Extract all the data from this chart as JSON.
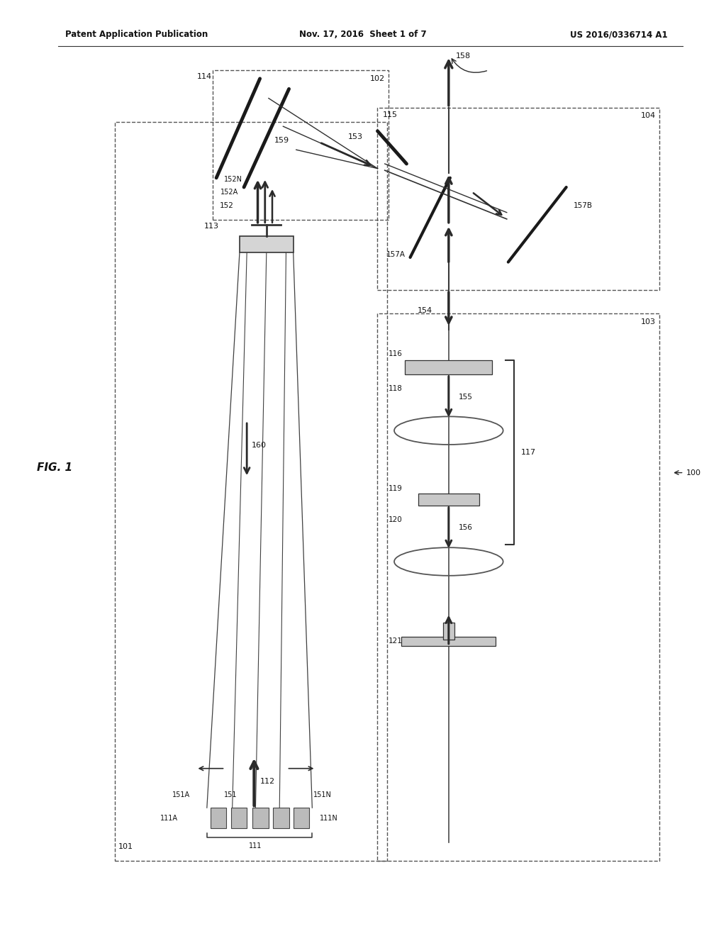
{
  "bg": "#ffffff",
  "header_left": "Patent Application Publication",
  "header_center": "Nov. 17, 2016  Sheet 1 of 7",
  "header_right": "US 2016/0336714 A1",
  "fig_label": "FIG. 1",
  "system_label": "100"
}
